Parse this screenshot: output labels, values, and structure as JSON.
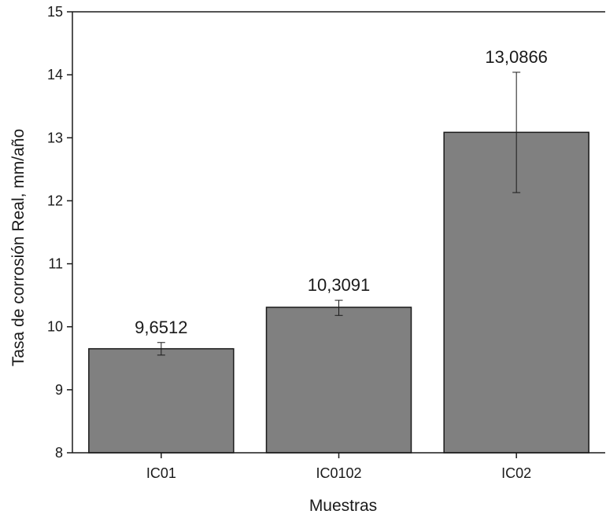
{
  "chart_data": {
    "type": "bar",
    "categories": [
      "IC01",
      "IC0102",
      "IC02"
    ],
    "values": [
      9.6512,
      10.3091,
      13.0866
    ],
    "value_labels": [
      "9,6512",
      "10,3091",
      "13,0866"
    ],
    "error_bars": [
      {
        "low": 9.55,
        "high": 9.75
      },
      {
        "low": 10.18,
        "high": 10.42
      },
      {
        "low": 12.13,
        "high": 14.04
      }
    ],
    "xlabel": "Muestras",
    "ylabel": "Tasa de corrosión Real, mm/año",
    "ylim": [
      8,
      15
    ],
    "y_ticks": [
      8,
      9,
      10,
      11,
      12,
      13,
      14,
      15
    ],
    "grid": false,
    "legend": "none",
    "colors": {
      "bar_fill": "#808080",
      "bar_stroke": "#1a1a1a",
      "axis": "#1a1a1a"
    }
  }
}
